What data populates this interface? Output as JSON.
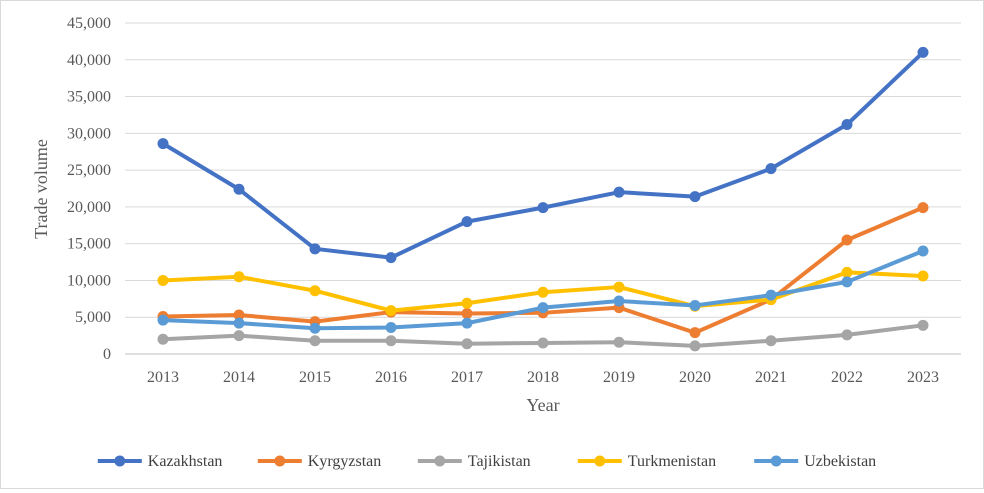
{
  "chart_data": {
    "type": "line",
    "title": "",
    "xlabel": "Year",
    "ylabel": "Trade volume",
    "categories": [
      "2013",
      "2014",
      "2015",
      "2016",
      "2017",
      "2018",
      "2019",
      "2020",
      "2021",
      "2022",
      "2023"
    ],
    "ylim": [
      0,
      45000
    ],
    "yticks": [
      0,
      5000,
      10000,
      15000,
      20000,
      25000,
      30000,
      35000,
      40000,
      45000
    ],
    "ytick_labels": [
      "0",
      "5,000",
      "10,000",
      "15,000",
      "20,000",
      "25,000",
      "30,000",
      "35,000",
      "40,000",
      "45,000"
    ],
    "grid": "horizontal",
    "legend_position": "bottom",
    "series": [
      {
        "name": "Kazakhstan",
        "color": "#4472C4",
        "values": [
          28600,
          22400,
          14300,
          13100,
          18000,
          19900,
          22000,
          21400,
          25200,
          31200,
          41000
        ]
      },
      {
        "name": "Kyrgyzstan",
        "color": "#ED7D31",
        "values": [
          5100,
          5300,
          4400,
          5700,
          5500,
          5600,
          6300,
          2900,
          7400,
          15500,
          19900
        ]
      },
      {
        "name": "Tajikistan",
        "color": "#A5A5A5",
        "values": [
          2000,
          2500,
          1800,
          1800,
          1400,
          1500,
          1600,
          1100,
          1800,
          2600,
          3900
        ]
      },
      {
        "name": "Turkmenistan",
        "color": "#FFC000",
        "values": [
          10000,
          10500,
          8600,
          5900,
          6900,
          8400,
          9100,
          6500,
          7400,
          11100,
          10600
        ]
      },
      {
        "name": "Uzbekistan",
        "color": "#5B9BD5",
        "values": [
          4600,
          4200,
          3500,
          3600,
          4200,
          6300,
          7200,
          6600,
          8000,
          9800,
          14000
        ]
      }
    ]
  }
}
